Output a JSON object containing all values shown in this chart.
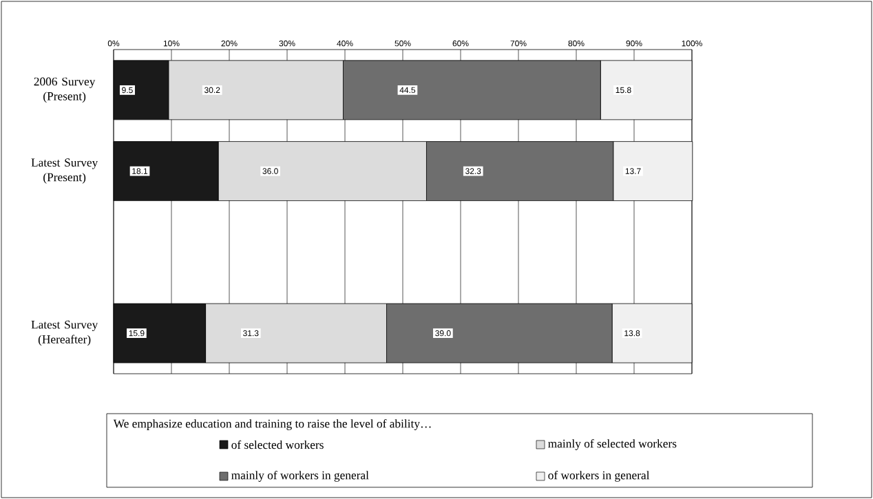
{
  "chart_data": {
    "type": "bar",
    "orientation": "horizontal",
    "stacked": true,
    "categories": [
      "2006 Survey (Present)",
      "Latest Survey (Present)",
      null,
      "Latest Survey (Hereafter)"
    ],
    "series": [
      {
        "name": "of selected workers",
        "color": "#1a1a1a",
        "values": [
          9.5,
          18.1,
          null,
          15.9
        ],
        "value_labels": [
          "9.5",
          "18.1",
          null,
          "15.9"
        ]
      },
      {
        "name": "mainly of selected workers",
        "color": "#dcdcdc",
        "values": [
          30.2,
          36.0,
          null,
          31.3
        ],
        "value_labels": [
          "30.2",
          "36.0",
          null,
          "31.3"
        ]
      },
      {
        "name": "mainly of workers in general",
        "color": "#6e6e6e",
        "values": [
          44.5,
          32.3,
          null,
          39.0
        ],
        "value_labels": [
          "44.5",
          "32.3",
          null,
          "39.0"
        ]
      },
      {
        "name": "of workers in general",
        "color": "#f0f0f0",
        "values": [
          15.8,
          13.7,
          null,
          13.8
        ],
        "value_labels": [
          "15.8",
          "13.7",
          null,
          "13.8"
        ]
      }
    ],
    "xlim": [
      0,
      100
    ],
    "xticks": [
      {
        "value": 0,
        "label": "0%"
      },
      {
        "value": 10,
        "label": "10%"
      },
      {
        "value": 20,
        "label": "20%"
      },
      {
        "value": 30,
        "label": "30%"
      },
      {
        "value": 40,
        "label": "40%"
      },
      {
        "value": 50,
        "label": "50%"
      },
      {
        "value": 60,
        "label": "60%"
      },
      {
        "value": 70,
        "label": "70%"
      },
      {
        "value": 80,
        "label": "80%"
      },
      {
        "value": 90,
        "label": "90%"
      },
      {
        "value": 100,
        "label": "100%"
      }
    ],
    "grid": "x",
    "legend": "bottom",
    "legend_title": "We emphasize education and training to raise the level of ability…"
  }
}
